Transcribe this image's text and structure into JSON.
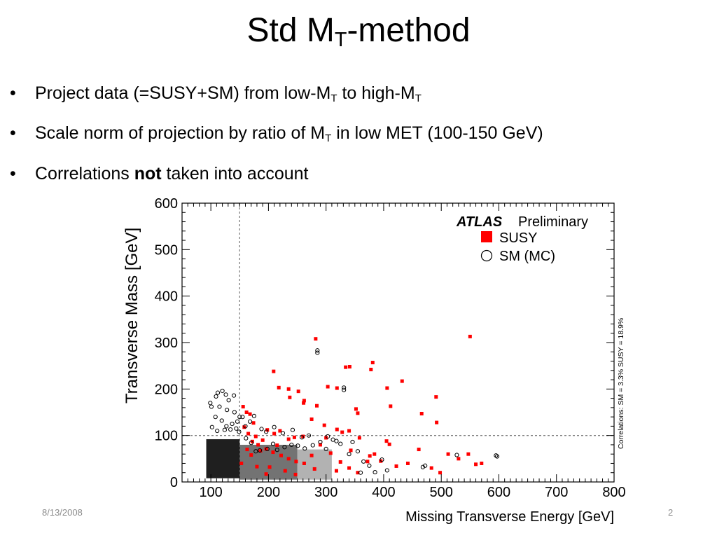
{
  "slide": {
    "title_main": "Std M",
    "title_sub": "T",
    "title_rest": "-method",
    "bullet_char": "•",
    "bullets": [
      {
        "t1": "Project data (=SUSY+SM) from low-M",
        "s1": "T",
        "t2": " to high-M",
        "s2": "T"
      },
      {
        "t1": "Scale norm of projection by ratio of M",
        "s1": "T",
        "t2": " in low MET (100-150 GeV)"
      },
      {
        "t1": "Correlations ",
        "bold": "not",
        "t2": " taken into account"
      }
    ],
    "footer_date": "8/13/2008",
    "page_number": "2"
  },
  "chart_data": {
    "type": "scatter",
    "xlabel": "Missing Transverse Energy [GeV]",
    "ylabel": "Transverse Mass [GeV]",
    "xlim": [
      50,
      800
    ],
    "ylim": [
      0,
      600
    ],
    "x_ticks": [
      100,
      200,
      300,
      400,
      500,
      600,
      700,
      800
    ],
    "y_ticks": [
      0,
      100,
      200,
      300,
      400,
      500,
      600
    ],
    "cut_lines": {
      "x": 150,
      "y": 100
    },
    "legend": {
      "placement": "top-right",
      "experiment": "ATLAS",
      "status": "Preliminary",
      "susy_label": "SUSY",
      "sm_label": "SM (MC)"
    },
    "side_annotation": "Correlations: SM = 3.3% SUSY = 18.9%",
    "colors": {
      "susy": "#ff0000",
      "sm": "#000000",
      "cut": "#808080"
    },
    "series": [
      {
        "name": "SUSY",
        "marker": "square",
        "points": [
          [
            550,
            313
          ],
          [
            282,
            308
          ],
          [
            381,
            257
          ],
          [
            432,
            217
          ],
          [
            341,
            248
          ],
          [
            334,
            247
          ],
          [
            378,
            242
          ],
          [
            209,
            238
          ],
          [
            406,
            202
          ],
          [
            412,
            163
          ],
          [
            491,
            183
          ],
          [
            319,
            202
          ],
          [
            303,
            205
          ],
          [
            218,
            203
          ],
          [
            235,
            200
          ],
          [
            252,
            195
          ],
          [
            237,
            182
          ],
          [
            261,
            170
          ],
          [
            284,
            164
          ],
          [
            352,
            157
          ],
          [
            262,
            175
          ],
          [
            466,
            147
          ],
          [
            492,
            128
          ],
          [
            355,
            148
          ],
          [
            275,
            135
          ],
          [
            297,
            122
          ],
          [
            319,
            113
          ],
          [
            328,
            107
          ],
          [
            340,
            110
          ],
          [
            300,
            95
          ],
          [
            220,
            110
          ],
          [
            245,
            96
          ],
          [
            260,
            98
          ],
          [
            235,
            92
          ],
          [
            210,
            104
          ],
          [
            198,
            112
          ],
          [
            190,
            90
          ],
          [
            178,
            98
          ],
          [
            165,
            104
          ],
          [
            158,
            118
          ],
          [
            162,
            150
          ],
          [
            168,
            146
          ],
          [
            174,
            127
          ],
          [
            156,
            162
          ],
          [
            172,
            87
          ],
          [
            182,
            80
          ],
          [
            196,
            71
          ],
          [
            208,
            64
          ],
          [
            222,
            57
          ],
          [
            235,
            50
          ],
          [
            248,
            44
          ],
          [
            262,
            40
          ],
          [
            275,
            57
          ],
          [
            290,
            80
          ],
          [
            308,
            62
          ],
          [
            325,
            43
          ],
          [
            340,
            30
          ],
          [
            355,
            20
          ],
          [
            372,
            44
          ],
          [
            384,
            60
          ],
          [
            395,
            45
          ],
          [
            410,
            81
          ],
          [
            422,
            34
          ],
          [
            442,
            40
          ],
          [
            461,
            70
          ],
          [
            483,
            30
          ],
          [
            498,
            20
          ],
          [
            512,
            60
          ],
          [
            530,
            50
          ],
          [
            547,
            60
          ],
          [
            560,
            38
          ],
          [
            570,
            40
          ],
          [
            405,
            88
          ],
          [
            358,
            95
          ],
          [
            376,
            56
          ],
          [
            229,
            24
          ],
          [
            196,
            17
          ],
          [
            180,
            33
          ],
          [
            170,
            58
          ],
          [
            202,
            32
          ],
          [
            215,
            79
          ],
          [
            247,
            16
          ],
          [
            280,
            28
          ],
          [
            318,
            24
          ],
          [
            343,
            68
          ],
          [
            186,
            67
          ],
          [
            163,
            70
          ],
          [
            153,
            40
          ]
        ]
      },
      {
        "name": "SM (MC)",
        "marker": "circle",
        "points": [
          [
            285,
            283
          ],
          [
            285,
            278
          ],
          [
            331,
            203
          ],
          [
            331,
            198
          ],
          [
            597,
            55
          ],
          [
            595,
            57
          ],
          [
            527,
            58
          ],
          [
            468,
            32
          ],
          [
            472,
            35
          ],
          [
            406,
            25
          ],
          [
            397,
            48
          ],
          [
            385,
            21
          ],
          [
            360,
            20
          ],
          [
            355,
            66
          ],
          [
            346,
            86
          ],
          [
            312,
            91
          ],
          [
            318,
            88
          ],
          [
            300,
            71
          ],
          [
            277,
            79
          ],
          [
            263,
            72
          ],
          [
            251,
            78
          ],
          [
            240,
            80
          ],
          [
            228,
            75
          ],
          [
            215,
            69
          ],
          [
            208,
            82
          ],
          [
            198,
            71
          ],
          [
            185,
            68
          ],
          [
            170,
            84
          ],
          [
            161,
            94
          ],
          [
            178,
            66
          ],
          [
            112,
            192
          ],
          [
            120,
            196
          ],
          [
            126,
            188
          ],
          [
            131,
            176
          ],
          [
            140,
            186
          ],
          [
            109,
            184
          ],
          [
            99,
            170
          ],
          [
            101,
            162
          ],
          [
            115,
            162
          ],
          [
            128,
            155
          ],
          [
            141,
            150
          ],
          [
            150,
            140
          ],
          [
            155,
            140
          ],
          [
            108,
            140
          ],
          [
            119,
            132
          ],
          [
            127,
            120
          ],
          [
            137,
            125
          ],
          [
            146,
            130
          ],
          [
            102,
            118
          ],
          [
            111,
            110
          ],
          [
            124,
            112
          ],
          [
            134,
            113
          ],
          [
            144,
            115
          ],
          [
            149,
            108
          ],
          [
            160,
            120
          ],
          [
            168,
            130
          ],
          [
            175,
            142
          ],
          [
            188,
            114
          ],
          [
            196,
            108
          ],
          [
            210,
            118
          ],
          [
            225,
            105
          ],
          [
            242,
            112
          ],
          [
            258,
            96
          ],
          [
            270,
            100
          ],
          [
            290,
            86
          ],
          [
            303,
            98
          ],
          [
            325,
            82
          ],
          [
            340,
            60
          ],
          [
            365,
            44
          ],
          [
            375,
            35
          ]
        ]
      }
    ]
  }
}
